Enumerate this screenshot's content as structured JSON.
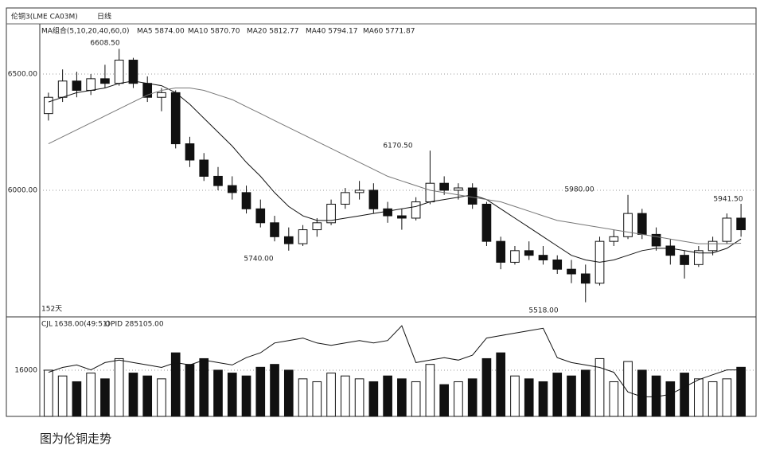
{
  "chart_data": {
    "type": "candlestick",
    "header": {
      "symbol": "伦铜3(LME CA03M)",
      "period": "日线"
    },
    "ma_legend": [
      "MA组合(5,10,20,40,60,0)",
      "MA5 5874.00",
      "MA10 5870.70",
      "MA20 5812.77",
      "MA40 5794.17",
      "MA60 5771.87"
    ],
    "days_label": "152天",
    "annotations": [
      "6608.50",
      "6170.50",
      "5740.00",
      "5980.00",
      "5518.00",
      "5941.50"
    ],
    "ylim": [
      5455,
      6716
    ],
    "yticks": [
      {
        "value": 6500,
        "label": "6500.00"
      },
      {
        "value": 6000,
        "label": "6000.00"
      }
    ],
    "grid": true,
    "up_color": "#ffffff",
    "down_color": "#111111",
    "ohlc": [
      [
        6330,
        6420,
        6300,
        6400
      ],
      [
        6400,
        6520,
        6380,
        6470
      ],
      [
        6470,
        6510,
        6400,
        6430
      ],
      [
        6430,
        6500,
        6410,
        6480
      ],
      [
        6480,
        6540,
        6440,
        6460
      ],
      [
        6460,
        6608.5,
        6450,
        6560
      ],
      [
        6560,
        6570,
        6440,
        6460
      ],
      [
        6460,
        6490,
        6380,
        6400
      ],
      [
        6400,
        6440,
        6340,
        6420
      ],
      [
        6420,
        6430,
        6180,
        6200
      ],
      [
        6200,
        6230,
        6100,
        6130
      ],
      [
        6130,
        6160,
        6040,
        6060
      ],
      [
        6060,
        6100,
        6000,
        6020
      ],
      [
        6020,
        6060,
        5960,
        5990
      ],
      [
        5990,
        6020,
        5900,
        5920
      ],
      [
        5920,
        5960,
        5840,
        5860
      ],
      [
        5860,
        5890,
        5780,
        5800
      ],
      [
        5800,
        5840,
        5740,
        5770
      ],
      [
        5770,
        5850,
        5760,
        5830
      ],
      [
        5830,
        5880,
        5800,
        5860
      ],
      [
        5860,
        5960,
        5850,
        5940
      ],
      [
        5940,
        6010,
        5920,
        5990
      ],
      [
        5990,
        6040,
        5960,
        6000
      ],
      [
        6000,
        6030,
        5900,
        5920
      ],
      [
        5920,
        5950,
        5860,
        5890
      ],
      [
        5890,
        5920,
        5830,
        5880
      ],
      [
        5880,
        5970,
        5870,
        5950
      ],
      [
        5950,
        6170.5,
        5940,
        6030
      ],
      [
        6030,
        6060,
        5980,
        6000
      ],
      [
        6000,
        6030,
        5960,
        6010
      ],
      [
        6010,
        6030,
        5920,
        5940
      ],
      [
        5940,
        5950,
        5760,
        5780
      ],
      [
        5780,
        5800,
        5660,
        5690
      ],
      [
        5690,
        5760,
        5680,
        5740
      ],
      [
        5740,
        5780,
        5700,
        5720
      ],
      [
        5720,
        5760,
        5680,
        5700
      ],
      [
        5700,
        5720,
        5640,
        5660
      ],
      [
        5660,
        5700,
        5600,
        5640
      ],
      [
        5640,
        5680,
        5518,
        5600
      ],
      [
        5600,
        5800,
        5590,
        5780
      ],
      [
        5780,
        5830,
        5760,
        5800
      ],
      [
        5800,
        5980,
        5790,
        5900
      ],
      [
        5900,
        5920,
        5790,
        5810
      ],
      [
        5810,
        5840,
        5740,
        5760
      ],
      [
        5760,
        5790,
        5680,
        5720
      ],
      [
        5720,
        5740,
        5620,
        5680
      ],
      [
        5680,
        5760,
        5670,
        5740
      ],
      [
        5740,
        5800,
        5720,
        5780
      ],
      [
        5780,
        5900,
        5770,
        5880
      ],
      [
        5880,
        5941.5,
        5800,
        5830
      ]
    ],
    "ma_lines": [
      {
        "color": "#111111",
        "values": [
          6380,
          6400,
          6420,
          6430,
          6440,
          6460,
          6470,
          6460,
          6450,
          6420,
          6370,
          6310,
          6250,
          6190,
          6120,
          6060,
          5990,
          5930,
          5890,
          5870,
          5870,
          5880,
          5890,
          5900,
          5910,
          5920,
          5930,
          5950,
          5960,
          5970,
          5980,
          5960,
          5920,
          5880,
          5840,
          5800,
          5760,
          5720,
          5700,
          5690,
          5700,
          5720,
          5740,
          5750,
          5750,
          5740,
          5730,
          5730,
          5750,
          5790
        ]
      },
      {
        "color": "#777777",
        "values": [
          6200,
          6230,
          6260,
          6290,
          6320,
          6350,
          6380,
          6410,
          6430,
          6440,
          6440,
          6430,
          6410,
          6390,
          6360,
          6330,
          6300,
          6270,
          6240,
          6210,
          6180,
          6150,
          6120,
          6090,
          6060,
          6040,
          6020,
          6000,
          5990,
          5980,
          5970,
          5960,
          5950,
          5930,
          5910,
          5890,
          5870,
          5860,
          5850,
          5840,
          5830,
          5820,
          5810,
          5800,
          5790,
          5780,
          5770,
          5770,
          5770,
          5772
        ]
      }
    ],
    "volume_panel": {
      "labels": [
        "CJL",
        "1638.00(49:51)",
        "OPID 285105.00"
      ],
      "ylim": [
        0,
        33900
      ],
      "yticks": [
        16000
      ],
      "y2lim": [
        260000,
        300000
      ],
      "volume": [
        16000,
        14000,
        12000,
        15000,
        13000,
        20000,
        15000,
        14000,
        13000,
        22000,
        18000,
        20000,
        16000,
        15000,
        14000,
        17000,
        18000,
        16000,
        13000,
        12000,
        15000,
        14000,
        13000,
        12000,
        14000,
        13000,
        12000,
        18000,
        11000,
        12000,
        13000,
        20000,
        22000,
        14000,
        13000,
        12000,
        15000,
        14000,
        16000,
        20000,
        12000,
        19000,
        16000,
        14000,
        12000,
        15000,
        13000,
        12000,
        13000,
        17000
      ],
      "open_interest": {
        "axis": "y2",
        "color": "#111111",
        "values": [
          278000,
          280000,
          281000,
          279000,
          282000,
          283000,
          282000,
          281000,
          280000,
          282000,
          281000,
          283000,
          282000,
          281000,
          284000,
          286000,
          290000,
          291000,
          292000,
          290000,
          289000,
          290000,
          291000,
          290000,
          291000,
          297000,
          282000,
          283000,
          284000,
          283000,
          285000,
          292000,
          293000,
          294000,
          295000,
          296000,
          284000,
          282000,
          281000,
          280000,
          278000,
          270000,
          268000,
          268000,
          269000,
          272000,
          275000,
          277000,
          279000,
          279000
        ]
      }
    },
    "caption": "图为伦铜走势"
  }
}
